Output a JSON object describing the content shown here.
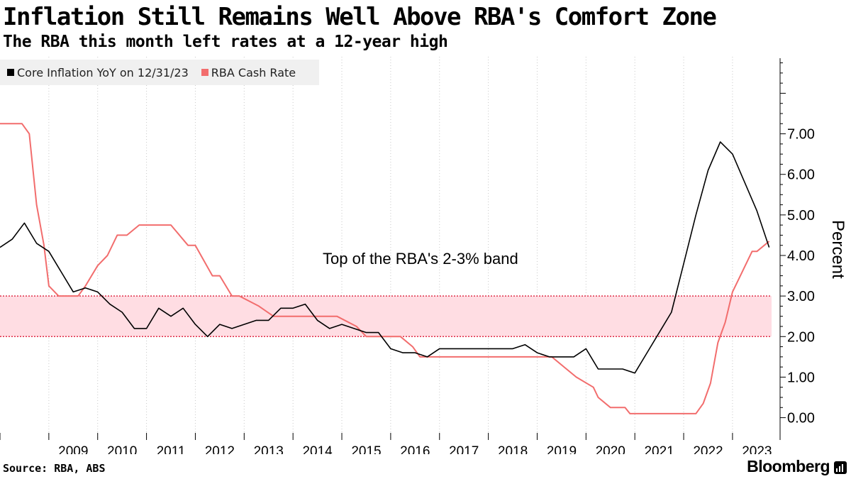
{
  "title": "Inflation Still Remains Well Above RBA's Comfort Zone",
  "subtitle": "The RBA this month left rates at a 12-year high",
  "source": "Source: RBA, ABS",
  "brand": "Bloomberg",
  "colors": {
    "inflation": "#000000",
    "cash_rate": "#f26d6d",
    "band_fill": "#ffdde3",
    "band_line": "#e0304a"
  },
  "chart_data": {
    "type": "line",
    "title": "Inflation Still Remains Well Above RBA's Comfort Zone",
    "ylabel": "Percent",
    "ylim": [
      -0.55,
      8.9
    ],
    "xlim": [
      2008.0,
      2023.8
    ],
    "y_ticks": [
      "0.00",
      "1.00",
      "2.00",
      "3.00",
      "4.00",
      "5.00",
      "6.00",
      "7.00"
    ],
    "x_ticks": [
      "2009",
      "2010",
      "2011",
      "2012",
      "2013",
      "2014",
      "2015",
      "2016",
      "2017",
      "2018",
      "2019",
      "2020",
      "2021",
      "2022",
      "2023"
    ],
    "band": {
      "low": 2.0,
      "high": 3.0,
      "label": "Top of the RBA's 2-3% band"
    },
    "series": [
      {
        "name": "Core Inflation YoY on 12/31/23",
        "x": [
          2008.0,
          2008.25,
          2008.5,
          2008.75,
          2009.0,
          2009.25,
          2009.5,
          2009.75,
          2010.0,
          2010.25,
          2010.5,
          2010.75,
          2011.0,
          2011.25,
          2011.5,
          2011.75,
          2012.0,
          2012.25,
          2012.5,
          2012.75,
          2013.0,
          2013.25,
          2013.5,
          2013.75,
          2014.0,
          2014.25,
          2014.5,
          2014.75,
          2015.0,
          2015.25,
          2015.5,
          2015.75,
          2016.0,
          2016.25,
          2016.5,
          2016.75,
          2017.0,
          2017.25,
          2017.5,
          2017.75,
          2018.0,
          2018.25,
          2018.5,
          2018.75,
          2019.0,
          2019.25,
          2019.5,
          2019.75,
          2020.0,
          2020.25,
          2020.5,
          2020.75,
          2021.0,
          2021.25,
          2021.5,
          2021.75,
          2022.0,
          2022.25,
          2022.5,
          2022.75,
          2023.0,
          2023.25,
          2023.5,
          2023.75
        ],
        "values": [
          4.2,
          4.4,
          4.8,
          4.3,
          4.1,
          3.6,
          3.1,
          3.2,
          3.1,
          2.8,
          2.6,
          2.2,
          2.2,
          2.7,
          2.5,
          2.7,
          2.3,
          2.0,
          2.3,
          2.2,
          2.3,
          2.4,
          2.4,
          2.7,
          2.7,
          2.8,
          2.4,
          2.2,
          2.3,
          2.2,
          2.1,
          2.1,
          1.7,
          1.6,
          1.6,
          1.5,
          1.7,
          1.7,
          1.7,
          1.7,
          1.7,
          1.7,
          1.7,
          1.8,
          1.6,
          1.5,
          1.5,
          1.5,
          1.7,
          1.2,
          1.2,
          1.2,
          1.1,
          1.6,
          2.1,
          2.6,
          3.8,
          5.0,
          6.1,
          6.8,
          6.5,
          5.8,
          5.1,
          4.2
        ]
      },
      {
        "name": "RBA Cash Rate",
        "x": [
          2008.0,
          2008.3,
          2008.45,
          2008.6,
          2008.75,
          2008.9,
          2009.0,
          2009.2,
          2009.4,
          2009.6,
          2009.75,
          2010.0,
          2010.2,
          2010.4,
          2010.6,
          2010.85,
          2011.3,
          2011.5,
          2011.85,
          2012.0,
          2012.35,
          2012.5,
          2012.75,
          2012.9,
          2013.3,
          2013.6,
          2013.8,
          2014.3,
          2014.9,
          2015.3,
          2015.5,
          2016.2,
          2016.45,
          2016.6,
          2016.8,
          2019.3,
          2019.55,
          2019.8,
          2020.15,
          2020.25,
          2020.5,
          2020.8,
          2020.9,
          2021.5,
          2021.75,
          2021.9,
          2022.25,
          2022.4,
          2022.55,
          2022.7,
          2022.85,
          2023.0,
          2023.2,
          2023.4,
          2023.5,
          2023.75
        ],
        "values": [
          7.25,
          7.25,
          7.25,
          7.0,
          5.25,
          4.25,
          3.25,
          3.0,
          3.0,
          3.0,
          3.25,
          3.75,
          4.0,
          4.5,
          4.5,
          4.75,
          4.75,
          4.75,
          4.25,
          4.25,
          3.5,
          3.5,
          3.0,
          3.0,
          2.75,
          2.5,
          2.5,
          2.5,
          2.5,
          2.25,
          2.0,
          2.0,
          1.75,
          1.5,
          1.5,
          1.5,
          1.25,
          1.0,
          0.75,
          0.5,
          0.25,
          0.25,
          0.1,
          0.1,
          0.1,
          0.1,
          0.1,
          0.35,
          0.85,
          1.85,
          2.35,
          3.1,
          3.6,
          4.1,
          4.1,
          4.35
        ]
      }
    ]
  }
}
